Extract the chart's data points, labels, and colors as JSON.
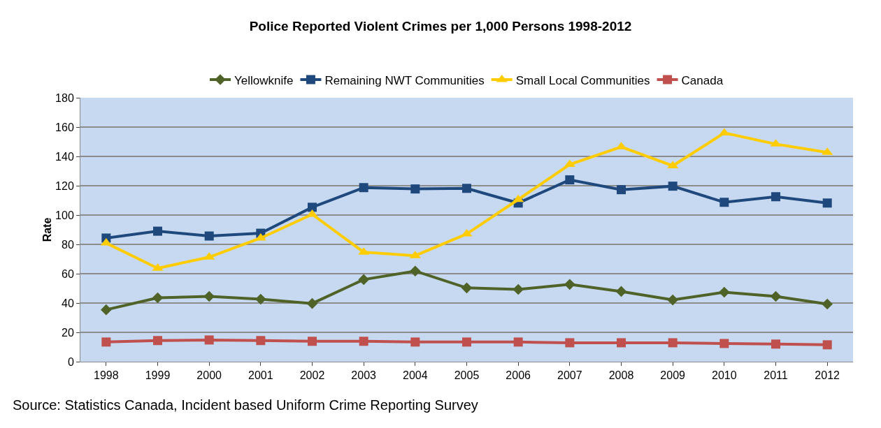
{
  "chart_data": {
    "type": "line",
    "title": "Police Reported Violent Crimes per 1,000 Persons 1998-2012",
    "ylabel": "Rate",
    "categories": [
      "1998",
      "1999",
      "2000",
      "2001",
      "2002",
      "2003",
      "2004",
      "2005",
      "2006",
      "2007",
      "2008",
      "2009",
      "2010",
      "2011",
      "2012"
    ],
    "series": [
      {
        "name": "Yellowknife",
        "color": "#4f6228",
        "marker": "diamond",
        "values": [
          35.4,
          43.6,
          44.5,
          42.6,
          39.7,
          56,
          61.8,
          50.3,
          49.3,
          52.7,
          47.9,
          42.1,
          47.4,
          44.5,
          39.3
        ]
      },
      {
        "name": "Remaining NWT Communities",
        "color": "#1f497d",
        "marker": "square",
        "values": [
          84.3,
          89,
          85.7,
          87.6,
          105.3,
          118.7,
          117.8,
          118.2,
          108.2,
          124,
          117.3,
          119.7,
          108.7,
          112.5,
          108.2
        ]
      },
      {
        "name": "Small Local Communities",
        "color": "#ffcc00",
        "marker": "triangle",
        "values": [
          80.9,
          63.7,
          71.3,
          84.3,
          100.5,
          74.7,
          72.3,
          87.1,
          110.6,
          134.5,
          146.5,
          133.6,
          156,
          148.4,
          142.7
        ]
      },
      {
        "name": "Canada",
        "color": "#c0504d",
        "marker": "square",
        "values": [
          13.4,
          14.4,
          14.8,
          14.4,
          13.9,
          13.9,
          13.4,
          13.4,
          13.4,
          12.9,
          12.9,
          12.9,
          12.4,
          12,
          11.5
        ]
      }
    ],
    "ylim": [
      0,
      180
    ],
    "yticks": [
      0,
      20,
      40,
      60,
      80,
      100,
      120,
      140,
      160,
      180
    ],
    "grid": "y",
    "legend": "top",
    "line_style": "solid",
    "annotations": [
      "Source: Statistics Canada, Incident based Uniform Crime Reporting Survey"
    ]
  }
}
